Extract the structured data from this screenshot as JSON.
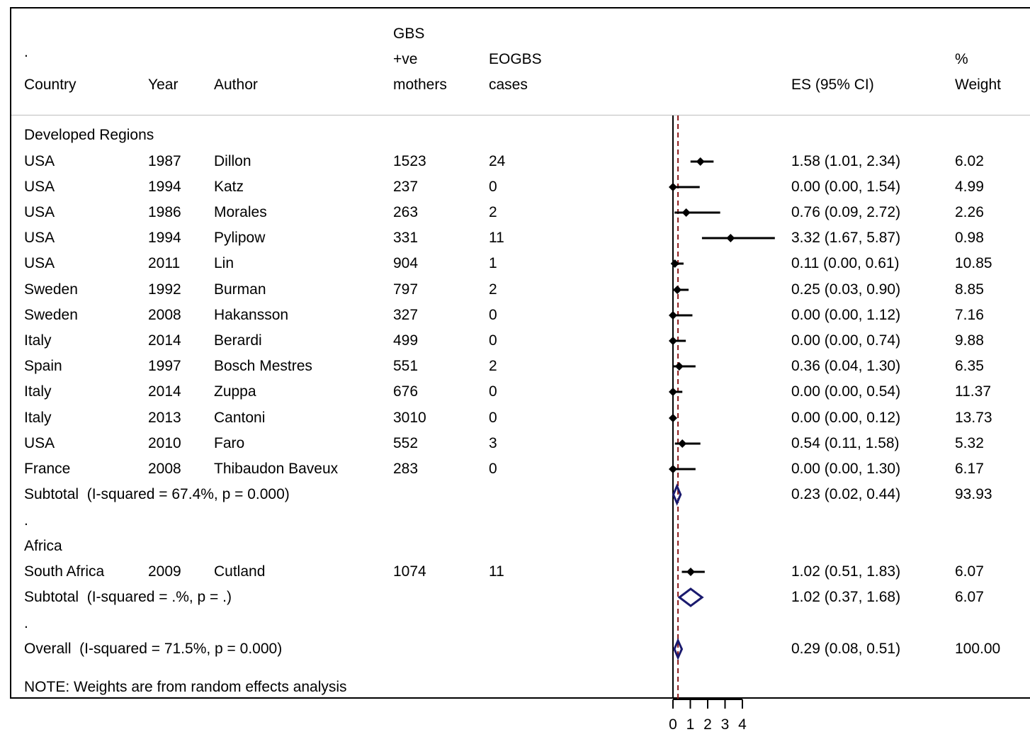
{
  "header": {
    "dot": ".",
    "country": "Country",
    "year": "Year",
    "author": "Author",
    "gbs": [
      "GBS",
      "+ve",
      "mothers"
    ],
    "eogbs": [
      "EOGBS",
      "cases"
    ],
    "es": "ES (95% CI)",
    "weight": [
      "%",
      "Weight"
    ]
  },
  "rows": [
    {
      "kind": "label",
      "text": "Developed Regions"
    },
    {
      "kind": "study",
      "country": "USA",
      "year": "1987",
      "author": "Dillon",
      "gbs": "1523",
      "cases": "24",
      "es_text": "1.58 (1.01, 2.34)",
      "weight": "6.02",
      "es": 1.58,
      "lo": 1.01,
      "hi": 2.34
    },
    {
      "kind": "study",
      "country": "USA",
      "year": "1994",
      "author": "Katz",
      "gbs": "237",
      "cases": "0",
      "es_text": "0.00 (0.00, 1.54)",
      "weight": "4.99",
      "es": 0.0,
      "lo": 0.0,
      "hi": 1.54
    },
    {
      "kind": "study",
      "country": "USA",
      "year": "1986",
      "author": "Morales",
      "gbs": "263",
      "cases": "2",
      "es_text": "0.76 (0.09, 2.72)",
      "weight": "2.26",
      "es": 0.76,
      "lo": 0.09,
      "hi": 2.72
    },
    {
      "kind": "study",
      "country": "USA",
      "year": "1994",
      "author": "Pylipow",
      "gbs": "331",
      "cases": "11",
      "es_text": "3.32 (1.67, 5.87)",
      "weight": "0.98",
      "es": 3.32,
      "lo": 1.67,
      "hi": 5.87
    },
    {
      "kind": "study",
      "country": "USA",
      "year": "2011",
      "author": "Lin",
      "gbs": "904",
      "cases": "1",
      "es_text": "0.11 (0.00, 0.61)",
      "weight": "10.85",
      "es": 0.11,
      "lo": 0.0,
      "hi": 0.61
    },
    {
      "kind": "study",
      "country": "Sweden",
      "year": "1992",
      "author": "Burman",
      "gbs": "797",
      "cases": "2",
      "es_text": "0.25 (0.03, 0.90)",
      "weight": "8.85",
      "es": 0.25,
      "lo": 0.03,
      "hi": 0.9
    },
    {
      "kind": "study",
      "country": "Sweden",
      "year": "2008",
      "author": "Hakansson",
      "gbs": "327",
      "cases": "0",
      "es_text": "0.00 (0.00, 1.12)",
      "weight": "7.16",
      "es": 0.0,
      "lo": 0.0,
      "hi": 1.12
    },
    {
      "kind": "study",
      "country": "Italy",
      "year": "2014",
      "author": "Berardi",
      "gbs": "499",
      "cases": "0",
      "es_text": "0.00 (0.00, 0.74)",
      "weight": "9.88",
      "es": 0.0,
      "lo": 0.0,
      "hi": 0.74
    },
    {
      "kind": "study",
      "country": "Spain",
      "year": "1997",
      "author": "Bosch Mestres",
      "gbs": "551",
      "cases": "2",
      "es_text": "0.36 (0.04, 1.30)",
      "weight": "6.35",
      "es": 0.36,
      "lo": 0.04,
      "hi": 1.3
    },
    {
      "kind": "study",
      "country": "Italy",
      "year": "2014",
      "author": "Zuppa",
      "gbs": "676",
      "cases": "0",
      "es_text": "0.00 (0.00, 0.54)",
      "weight": "11.37",
      "es": 0.0,
      "lo": 0.0,
      "hi": 0.54
    },
    {
      "kind": "study",
      "country": "Italy",
      "year": "2013",
      "author": "Cantoni",
      "gbs": "3010",
      "cases": "0",
      "es_text": "0.00 (0.00, 0.12)",
      "weight": "13.73",
      "es": 0.0,
      "lo": 0.0,
      "hi": 0.12
    },
    {
      "kind": "study",
      "country": "USA",
      "year": "2010",
      "author": "Faro",
      "gbs": "552",
      "cases": "3",
      "es_text": "0.54 (0.11, 1.58)",
      "weight": "5.32",
      "es": 0.54,
      "lo": 0.11,
      "hi": 1.58
    },
    {
      "kind": "study",
      "country": "France",
      "year": "2008",
      "author": "Thibaudon Baveux",
      "gbs": "283",
      "cases": "0",
      "es_text": "0.00 (0.00, 1.30)",
      "weight": "6.17",
      "es": 0.0,
      "lo": 0.0,
      "hi": 1.3
    },
    {
      "kind": "subtotal",
      "text": "Subtotal  (I-squared = 67.4%, p = 0.000)",
      "es_text": "0.23 (0.02, 0.44)",
      "weight": "93.93",
      "es": 0.23,
      "lo": 0.02,
      "hi": 0.44
    },
    {
      "kind": "label",
      "text": "."
    },
    {
      "kind": "label",
      "text": "Africa"
    },
    {
      "kind": "study",
      "country": "South Africa",
      "year": "2009",
      "author": "Cutland",
      "gbs": "1074",
      "cases": "11",
      "es_text": "1.02 (0.51, 1.83)",
      "weight": "6.07",
      "es": 1.02,
      "lo": 0.51,
      "hi": 1.83
    },
    {
      "kind": "subtotal",
      "text": "Subtotal  (I-squared = .%, p = .)",
      "es_text": "1.02 (0.37, 1.68)",
      "weight": "6.07",
      "es": 1.02,
      "lo": 0.37,
      "hi": 1.68
    },
    {
      "kind": "label",
      "text": "."
    },
    {
      "kind": "subtotal",
      "text": "Overall  (I-squared = 71.5%, p = 0.000)",
      "es_text": "0.29 (0.08, 0.51)",
      "weight": "100.00",
      "es": 0.29,
      "lo": 0.08,
      "hi": 0.51
    },
    {
      "kind": "note",
      "text": "NOTE: Weights are from random effects analysis"
    }
  ],
  "chart_data": {
    "type": "forest",
    "x_ticks": [
      "0",
      "1",
      "2",
      "3",
      "4"
    ],
    "null_line": 0,
    "overall_es": 0.29,
    "xlim": [
      0,
      4
    ],
    "colors": {
      "point": "#000000",
      "diamond": "#1a1a6e",
      "overall_line": "#8b1a1a"
    },
    "series": [
      {
        "label": "Dillon",
        "es": 1.58,
        "lo": 1.01,
        "hi": 2.34
      },
      {
        "label": "Katz",
        "es": 0.0,
        "lo": 0.0,
        "hi": 1.54
      },
      {
        "label": "Morales",
        "es": 0.76,
        "lo": 0.09,
        "hi": 2.72
      },
      {
        "label": "Pylipow",
        "es": 3.32,
        "lo": 1.67,
        "hi": 5.87
      },
      {
        "label": "Lin",
        "es": 0.11,
        "lo": 0.0,
        "hi": 0.61
      },
      {
        "label": "Burman",
        "es": 0.25,
        "lo": 0.03,
        "hi": 0.9
      },
      {
        "label": "Hakansson",
        "es": 0.0,
        "lo": 0.0,
        "hi": 1.12
      },
      {
        "label": "Berardi",
        "es": 0.0,
        "lo": 0.0,
        "hi": 0.74
      },
      {
        "label": "Bosch Mestres",
        "es": 0.36,
        "lo": 0.04,
        "hi": 1.3
      },
      {
        "label": "Zuppa",
        "es": 0.0,
        "lo": 0.0,
        "hi": 0.54
      },
      {
        "label": "Cantoni",
        "es": 0.0,
        "lo": 0.0,
        "hi": 0.12
      },
      {
        "label": "Faro",
        "es": 0.54,
        "lo": 0.11,
        "hi": 1.58
      },
      {
        "label": "Thibaudon Baveux",
        "es": 0.0,
        "lo": 0.0,
        "hi": 1.3
      },
      {
        "label": "Cutland",
        "es": 1.02,
        "lo": 0.51,
        "hi": 1.83
      }
    ],
    "subtotals": [
      {
        "label": "Subtotal  (I-squared = 67.4%, p = 0.000)",
        "es": 0.23,
        "lo": 0.02,
        "hi": 0.44
      },
      {
        "label": "Subtotal  (I-squared = .%, p = .)",
        "es": 1.02,
        "lo": 0.37,
        "hi": 1.68
      },
      {
        "label": "Overall  (I-squared = 71.5%, p = 0.000)",
        "es": 0.29,
        "lo": 0.08,
        "hi": 0.51
      }
    ]
  }
}
